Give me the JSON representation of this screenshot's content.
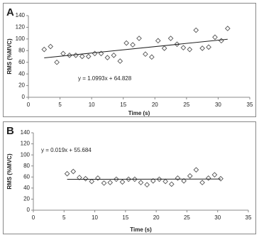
{
  "chart_data": [
    {
      "type": "scatter",
      "panel": "A",
      "x_label": "Time (s)",
      "y_label": "RMS (%MVC)",
      "annotation": "y = 1.0993x + 64.828",
      "marker_color": "#555555",
      "line_color": "#222222",
      "xlim": [
        0,
        35
      ],
      "xticks": [
        0,
        5,
        10,
        15,
        20,
        25,
        30,
        35
      ],
      "ylim": [
        0,
        140
      ],
      "yticks": [
        0,
        20,
        40,
        60,
        80,
        100,
        120,
        140
      ],
      "x": [
        2.5,
        3.5,
        4.5,
        5.5,
        6.5,
        7.5,
        8.5,
        9.5,
        10.5,
        11.5,
        12.5,
        13.5,
        14.5,
        15.5,
        16.5,
        17.5,
        18.5,
        19.5,
        20.5,
        21.5,
        22.5,
        23.5,
        24.5,
        25.5,
        26.5,
        27.5,
        28.5,
        29.5,
        30.5,
        31.5
      ],
      "values": [
        82,
        87,
        60,
        75,
        72,
        72,
        70,
        70,
        75,
        75,
        68,
        72,
        62,
        93,
        90,
        101,
        74,
        69,
        97,
        84,
        101,
        91,
        85,
        82,
        115,
        84,
        86,
        103,
        97,
        118
      ],
      "trend_x": [
        2.5,
        31.5
      ],
      "trend_y": [
        67.6,
        99.5
      ]
    },
    {
      "type": "scatter",
      "panel": "B",
      "x_label": "Time (s)",
      "y_label": "RMS (%MVC)",
      "annotation": "y = 0.019x + 55.684",
      "marker_color": "#555555",
      "line_color": "#222222",
      "xlim": [
        0,
        35
      ],
      "xticks": [
        0,
        5,
        10,
        15,
        20,
        25,
        30,
        35
      ],
      "ylim": [
        0,
        140
      ],
      "yticks": [
        0,
        20,
        40,
        60,
        80,
        100,
        120,
        140
      ],
      "x": [
        5.5,
        6.5,
        7.5,
        8.5,
        9.5,
        10.5,
        11.5,
        12.5,
        13.5,
        14.5,
        15.5,
        16.5,
        17.5,
        18.5,
        19.5,
        20.5,
        21.5,
        22.5,
        23.5,
        24.5,
        25.5,
        26.5,
        27.5,
        28.5,
        29.5,
        30.5
      ],
      "values": [
        66,
        70,
        59,
        57,
        52,
        58,
        49,
        50,
        56,
        51,
        56,
        56,
        50,
        46,
        53,
        56,
        52,
        47,
        58,
        53,
        62,
        73,
        50,
        58,
        64,
        57
      ],
      "trend_x": [
        5.5,
        30.5
      ],
      "trend_y": [
        55.8,
        56.3
      ]
    }
  ]
}
